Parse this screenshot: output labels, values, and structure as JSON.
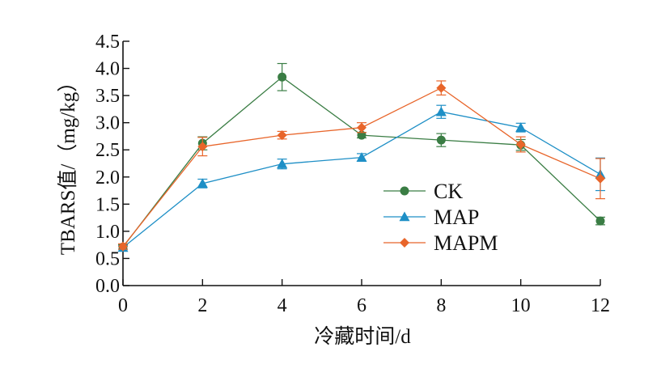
{
  "chart_data": {
    "type": "line",
    "xlabel": "冷藏时间/d",
    "ylabel": "TBARS值/（mg/kg）",
    "xlim": [
      0,
      12
    ],
    "ylim": [
      0,
      4.5
    ],
    "x_ticks": [
      "0",
      "2",
      "4",
      "6",
      "8",
      "10",
      "12"
    ],
    "y_ticks": [
      "0.0",
      "0.5",
      "1.0",
      "1.5",
      "2.0",
      "2.5",
      "3.0",
      "3.5",
      "4.0",
      "4.5"
    ],
    "x": [
      0,
      2,
      4,
      6,
      8,
      10,
      12
    ],
    "grid": false,
    "legend_position": "center-right",
    "series": [
      {
        "name": "CK",
        "marker": "circle",
        "color": "#3a7d44",
        "values": [
          0.71,
          2.62,
          3.84,
          2.77,
          2.68,
          2.59,
          1.19
        ],
        "errors": [
          0.04,
          0.12,
          0.25,
          0.05,
          0.12,
          0.1,
          0.07
        ]
      },
      {
        "name": "MAP",
        "marker": "triangle",
        "color": "#1e8fc6",
        "values": [
          0.7,
          1.88,
          2.24,
          2.36,
          3.2,
          2.91,
          2.05
        ],
        "errors": [
          0.03,
          0.08,
          0.09,
          0.07,
          0.12,
          0.08,
          0.3
        ]
      },
      {
        "name": "MAPM",
        "marker": "diamond",
        "color": "#e8652a",
        "values": [
          0.72,
          2.56,
          2.77,
          2.91,
          3.64,
          2.6,
          1.97
        ],
        "errors": [
          0.05,
          0.17,
          0.07,
          0.09,
          0.13,
          0.14,
          0.37
        ]
      }
    ]
  }
}
